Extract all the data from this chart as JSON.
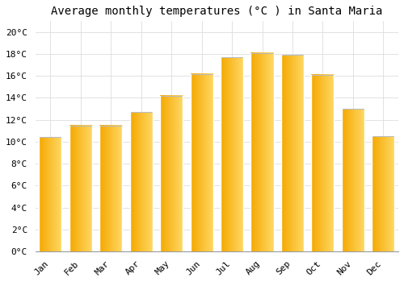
{
  "months": [
    "Jan",
    "Feb",
    "Mar",
    "Apr",
    "May",
    "Jun",
    "Jul",
    "Aug",
    "Sep",
    "Oct",
    "Nov",
    "Dec"
  ],
  "temperatures": [
    10.4,
    11.5,
    11.5,
    12.7,
    14.2,
    16.2,
    17.7,
    18.1,
    17.9,
    16.1,
    13.0,
    10.5
  ],
  "bar_color_left": "#F5A800",
  "bar_color_right": "#FFD966",
  "bar_color_bottom": "#FFD050",
  "bar_top_edge_color": "#BBBBBB",
  "background_color": "#FFFFFF",
  "grid_color": "#DDDDDD",
  "title": "Average monthly temperatures (°C ) in Santa Maria",
  "title_fontsize": 10,
  "tick_label_fontsize": 8,
  "ylim": [
    0,
    21
  ],
  "yticks": [
    0,
    2,
    4,
    6,
    8,
    10,
    12,
    14,
    16,
    18,
    20
  ],
  "ytick_labels": [
    "0°C",
    "2°C",
    "4°C",
    "6°C",
    "8°C",
    "10°C",
    "12°C",
    "14°C",
    "16°C",
    "18°C",
    "20°C"
  ],
  "font_family": "monospace",
  "bar_width": 0.75
}
